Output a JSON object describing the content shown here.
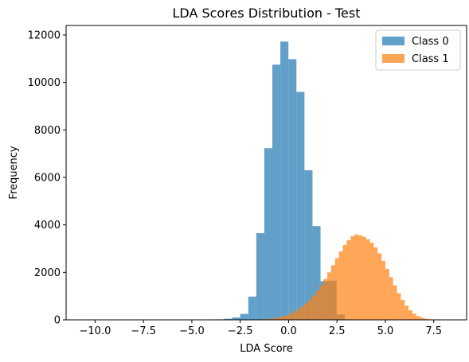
{
  "chart_data": {
    "type": "bar",
    "title": "LDA Scores Distribution - Test",
    "xlabel": "LDA Score",
    "ylabel": "Frequency",
    "xlim": [
      -11.5,
      9.2
    ],
    "ylim": [
      0,
      12400
    ],
    "xticks": [
      -10.0,
      -7.5,
      -5.0,
      -2.5,
      0.0,
      2.5,
      5.0,
      7.5
    ],
    "xtick_labels": [
      "−10.0",
      "−7.5",
      "−5.0",
      "−2.5",
      "0.0",
      "2.5",
      "5.0",
      "7.5"
    ],
    "yticks": [
      0,
      2000,
      4000,
      6000,
      8000,
      10000,
      12000
    ],
    "ytick_labels": [
      "0",
      "2000",
      "4000",
      "6000",
      "8000",
      "10000",
      "12000"
    ],
    "legend_position": "top-right",
    "series": [
      {
        "name": "Class 0",
        "color": "#1f77b4",
        "alpha": 0.7,
        "bin_start": -10.8,
        "bin_width": 0.415,
        "counts": [
          0,
          0,
          0,
          0,
          0,
          0,
          0,
          0,
          0,
          0,
          0,
          0,
          0,
          0,
          2,
          5,
          10,
          20,
          45,
          100,
          250,
          980,
          3650,
          7230,
          10750,
          11720,
          10980,
          9600,
          6300,
          3950,
          1630,
          1650,
          220,
          20
        ]
      },
      {
        "name": "Class 1",
        "color": "#ff7f0e",
        "alpha": 0.7,
        "bin_start": -2.2,
        "bin_width": 0.2,
        "counts": [
          5,
          8,
          12,
          18,
          25,
          35,
          50,
          70,
          100,
          140,
          190,
          260,
          350,
          440,
          560,
          690,
          840,
          1020,
          1230,
          1460,
          1720,
          2000,
          2300,
          2600,
          2880,
          3150,
          3350,
          3520,
          3600,
          3560,
          3500,
          3400,
          3250,
          3050,
          2800,
          2480,
          2150,
          1800,
          1450,
          1120,
          840,
          600,
          400,
          260,
          160,
          90,
          50,
          25,
          12,
          5,
          2,
          1
        ]
      }
    ]
  }
}
